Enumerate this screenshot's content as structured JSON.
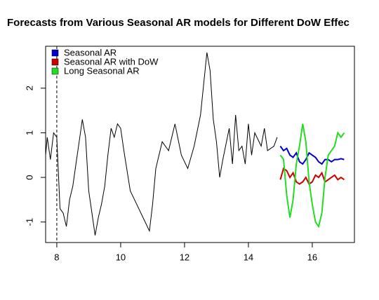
{
  "chart_data": {
    "type": "line",
    "title": "Forecasts from Various Seasonal AR models for Different DoW Effec",
    "xlim": [
      7.65,
      17.32
    ],
    "ylim": [
      -1.46,
      2.94
    ],
    "xticks": [
      8,
      10,
      12,
      14,
      16
    ],
    "yticks": [
      -1,
      0,
      1,
      2
    ],
    "vline": 8,
    "legend": "topleft",
    "series": [
      {
        "color": "#000000",
        "legend": false,
        "x": [
          7.65,
          7.7,
          7.8,
          7.9,
          8.0,
          8.1,
          8.2,
          8.3,
          8.4,
          8.5,
          8.6,
          8.7,
          8.8,
          8.9,
          9.0,
          9.1,
          9.2,
          9.3,
          9.4,
          9.5,
          9.6,
          9.7,
          9.8,
          9.9,
          10.0,
          10.1,
          10.3,
          10.5,
          10.7,
          10.9,
          11.0,
          11.1,
          11.3,
          11.5,
          11.7,
          11.9,
          12.1,
          12.3,
          12.5,
          12.7,
          12.8,
          12.9,
          13.0,
          13.1,
          13.2,
          13.4,
          13.5,
          13.6,
          13.7,
          13.8,
          13.9,
          14.0,
          14.1,
          14.2,
          14.4,
          14.5,
          14.6,
          14.8,
          14.9
        ],
        "values": [
          0.5,
          0.9,
          0.4,
          1.0,
          0.9,
          -0.7,
          -0.8,
          -1.1,
          -0.5,
          -0.2,
          0.3,
          0.8,
          1.3,
          0.9,
          -0.3,
          -0.8,
          -1.3,
          -0.9,
          -0.6,
          -0.2,
          0.5,
          1.1,
          0.9,
          1.2,
          1.1,
          0.6,
          -0.3,
          -0.6,
          -0.9,
          -1.2,
          -0.6,
          0.2,
          0.8,
          0.6,
          1.2,
          0.5,
          0.2,
          0.7,
          1.4,
          2.8,
          2.4,
          1.3,
          0.8,
          0.0,
          0.4,
          1.1,
          0.3,
          1.4,
          0.6,
          0.7,
          0.3,
          1.2,
          0.5,
          1.0,
          0.7,
          1.1,
          0.6,
          0.7,
          0.9
        ]
      },
      {
        "name": "Seasonal AR",
        "color": "#0000cc",
        "x": [
          15.0,
          15.1,
          15.2,
          15.3,
          15.4,
          15.5,
          15.6,
          15.7,
          15.8,
          15.9,
          16.0,
          16.1,
          16.2,
          16.3,
          16.4,
          16.5,
          16.6,
          16.7,
          16.8,
          16.9,
          17.0
        ],
        "values": [
          0.7,
          0.6,
          0.65,
          0.5,
          0.45,
          0.55,
          0.35,
          0.3,
          0.4,
          0.55,
          0.5,
          0.45,
          0.35,
          0.3,
          0.4,
          0.4,
          0.35,
          0.4,
          0.4,
          0.42,
          0.4
        ]
      },
      {
        "name": "Seasonal AR with DoW",
        "color": "#cc0000",
        "x": [
          15.0,
          15.1,
          15.2,
          15.3,
          15.4,
          15.5,
          15.6,
          15.7,
          15.8,
          15.9,
          16.0,
          16.1,
          16.2,
          16.3,
          16.4,
          16.5,
          16.6,
          16.7,
          16.8,
          16.9,
          17.0
        ],
        "values": [
          -0.05,
          0.2,
          0.15,
          0.0,
          0.1,
          -0.1,
          -0.15,
          -0.1,
          0.0,
          -0.15,
          -0.1,
          0.05,
          0.0,
          0.1,
          -0.1,
          -0.05,
          0.0,
          0.05,
          -0.05,
          0.0,
          -0.05
        ]
      },
      {
        "name": "Long Seasonal AR",
        "color": "#22dd22",
        "x": [
          15.0,
          15.1,
          15.2,
          15.3,
          15.4,
          15.5,
          15.6,
          15.7,
          15.8,
          15.9,
          16.0,
          16.1,
          16.2,
          16.3,
          16.4,
          16.5,
          16.6,
          16.7,
          16.8,
          16.9,
          17.0
        ],
        "values": [
          0.5,
          0.4,
          -0.4,
          -0.9,
          -0.5,
          0.3,
          0.7,
          1.2,
          0.8,
          -0.1,
          -0.6,
          -1.0,
          -1.1,
          -0.8,
          0.0,
          0.5,
          0.6,
          0.7,
          1.0,
          0.9,
          1.0
        ]
      }
    ]
  }
}
